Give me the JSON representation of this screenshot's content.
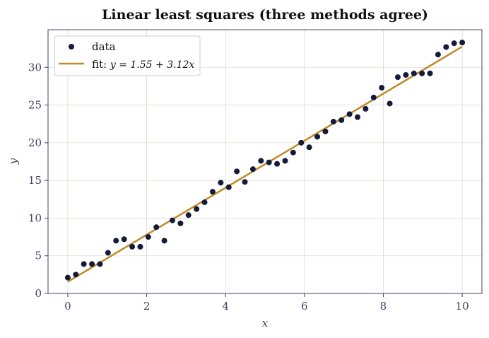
{
  "chart_data": {
    "type": "scatter",
    "title": "Linear least squares (three methods agree)",
    "xlabel": "x",
    "ylabel": "y",
    "xlim": [
      -0.5,
      10.5
    ],
    "ylim": [
      0,
      35
    ],
    "xticks": [
      0,
      2,
      4,
      6,
      8,
      10
    ],
    "yticks": [
      0,
      5,
      10,
      15,
      20,
      25,
      30
    ],
    "grid": true,
    "legend_position": "top-left",
    "series": [
      {
        "name": "data",
        "kind": "scatter",
        "color": "#141b3a",
        "x": [
          0,
          0.204,
          0.408,
          0.612,
          0.816,
          1.02,
          1.224,
          1.429,
          1.633,
          1.837,
          2.041,
          2.245,
          2.449,
          2.653,
          2.857,
          3.061,
          3.265,
          3.469,
          3.673,
          3.878,
          4.082,
          4.286,
          4.49,
          4.694,
          4.898,
          5.102,
          5.306,
          5.51,
          5.714,
          5.918,
          6.122,
          6.327,
          6.531,
          6.735,
          6.939,
          7.143,
          7.347,
          7.551,
          7.755,
          7.959,
          8.163,
          8.367,
          8.571,
          8.776,
          8.98,
          9.184,
          9.388,
          9.592,
          9.796,
          10
        ],
        "y": [
          2.1,
          2.5,
          3.9,
          3.9,
          3.9,
          5.4,
          7.0,
          7.2,
          6.2,
          6.2,
          7.5,
          8.8,
          7.0,
          9.7,
          9.3,
          10.4,
          11.2,
          12.1,
          13.5,
          14.7,
          14.1,
          16.2,
          14.8,
          16.5,
          17.6,
          17.4,
          17.2,
          17.6,
          18.7,
          20.0,
          19.4,
          20.8,
          21.5,
          22.8,
          23.0,
          23.8,
          23.4,
          24.5,
          26.0,
          27.3,
          25.2,
          28.7,
          29.0,
          29.2,
          29.2,
          29.2,
          31.7,
          32.7,
          33.2,
          33.3
        ]
      },
      {
        "name": "fit",
        "label_math": "y = 1.55 + 3.12x",
        "kind": "line",
        "color": "#bf8a27",
        "intercept": 1.55,
        "slope": 3.12
      }
    ]
  }
}
